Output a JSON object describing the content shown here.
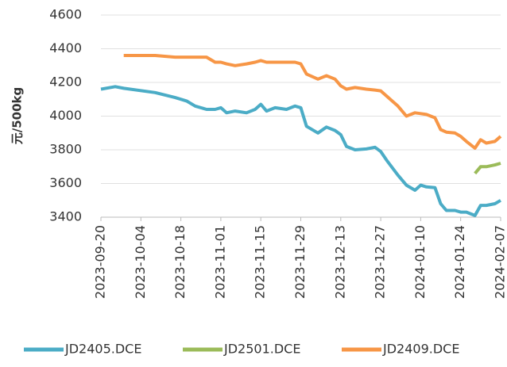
{
  "chart_data": {
    "type": "line",
    "y_label": "元/500kg",
    "x": [
      "2023-09-20",
      "2023-09-25",
      "2023-09-28",
      "2023-10-09",
      "2023-10-16",
      "2023-10-20",
      "2023-10-23",
      "2023-10-27",
      "2023-10-30",
      "2023-11-01",
      "2023-11-03",
      "2023-11-06",
      "2023-11-10",
      "2023-11-13",
      "2023-11-15",
      "2023-11-17",
      "2023-11-20",
      "2023-11-24",
      "2023-11-27",
      "2023-11-29",
      "2023-12-01",
      "2023-12-05",
      "2023-12-08",
      "2023-12-11",
      "2023-12-13",
      "2023-12-15",
      "2023-12-18",
      "2023-12-22",
      "2023-12-25",
      "2023-12-27",
      "2023-12-29",
      "2024-01-02",
      "2024-01-05",
      "2024-01-08",
      "2024-01-10",
      "2024-01-12",
      "2024-01-15",
      "2024-01-17",
      "2024-01-19",
      "2024-01-22",
      "2024-01-24",
      "2024-01-26",
      "2024-01-29",
      "2024-01-31",
      "2024-02-02",
      "2024-02-05",
      "2024-02-07"
    ],
    "series": [
      {
        "name": "JD2405.DCE",
        "color": "#4bacc6",
        "values": [
          4160,
          4175,
          4165,
          4140,
          4110,
          4090,
          4060,
          4040,
          4040,
          4050,
          4020,
          4030,
          4020,
          4040,
          4070,
          4030,
          4050,
          4040,
          4060,
          4050,
          3940,
          3900,
          3935,
          3915,
          3890,
          3820,
          3800,
          3805,
          3815,
          3790,
          3740,
          3650,
          3590,
          3560,
          3590,
          3580,
          3575,
          3480,
          3440,
          3440,
          3430,
          3430,
          3410,
          3470,
          3470,
          3480,
          3500
        ]
      },
      {
        "name": "JD2501.DCE",
        "color": "#9bbb59",
        "values": [
          null,
          null,
          null,
          null,
          null,
          null,
          null,
          null,
          null,
          null,
          null,
          null,
          null,
          null,
          null,
          null,
          null,
          null,
          null,
          null,
          null,
          null,
          null,
          null,
          null,
          null,
          null,
          null,
          null,
          null,
          null,
          null,
          null,
          null,
          null,
          null,
          null,
          null,
          null,
          null,
          null,
          null,
          3660,
          3700,
          3700,
          3710,
          3720
        ]
      },
      {
        "name": "JD2409.DCE",
        "color": "#f79646",
        "values": [
          null,
          null,
          4360,
          4360,
          4350,
          4350,
          4350,
          4350,
          4320,
          4320,
          4310,
          4300,
          4310,
          4320,
          4330,
          4320,
          4320,
          4320,
          4320,
          4310,
          4250,
          4220,
          4240,
          4220,
          4180,
          4160,
          4170,
          4160,
          4155,
          4150,
          4120,
          4060,
          4000,
          4020,
          4015,
          4010,
          3990,
          3920,
          3905,
          3900,
          3880,
          3850,
          3810,
          3860,
          3840,
          3850,
          3880
        ]
      }
    ],
    "xlim": [
      "2023-09-20",
      "2024-02-07"
    ],
    "xticks": [
      "2023-09-20",
      "2023-10-04",
      "2023-10-18",
      "2023-11-01",
      "2023-11-15",
      "2023-11-29",
      "2023-12-13",
      "2023-12-27",
      "2024-01-10",
      "2024-01-24",
      "2024-02-07"
    ],
    "ylim": [
      3400,
      4600
    ],
    "yticks": [
      3400,
      3600,
      3800,
      4000,
      4200,
      4400,
      4600
    ],
    "grid": true,
    "legend": "bottom"
  }
}
